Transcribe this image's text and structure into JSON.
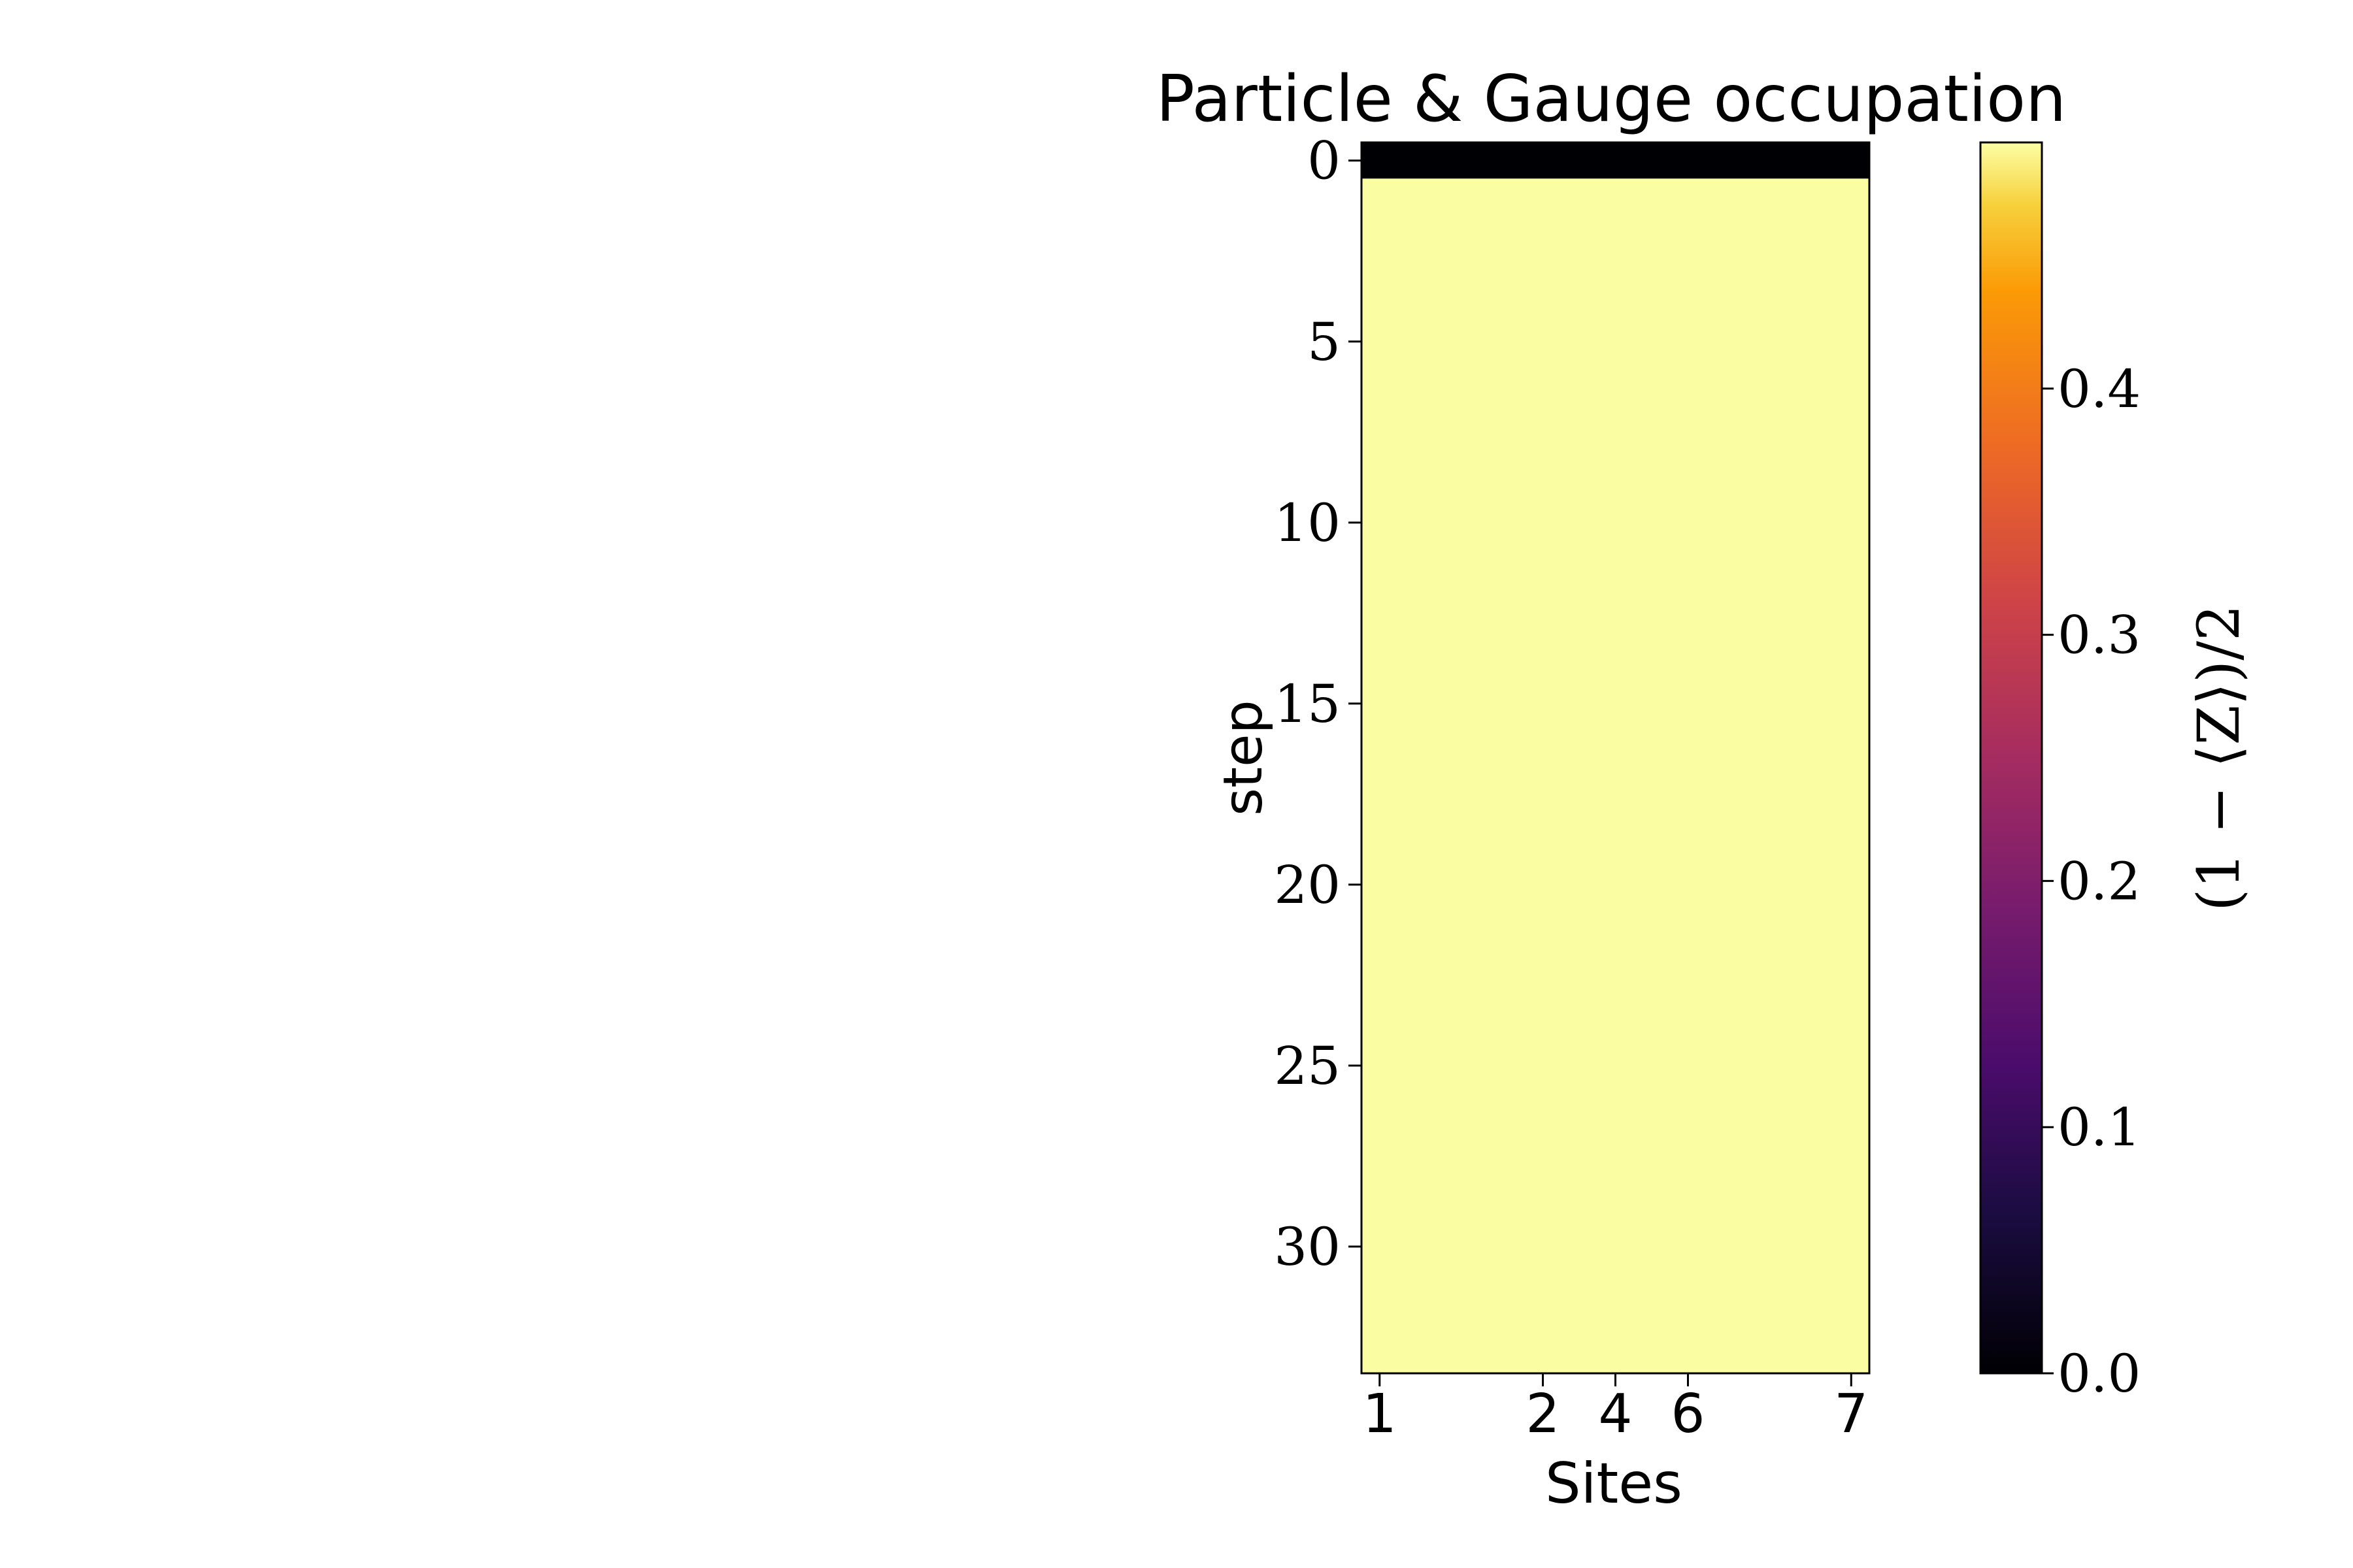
{
  "chart_data": {
    "type": "heatmap",
    "title": "Particle & Gauge occupation",
    "xlabel": "Sites",
    "ylabel": "step",
    "x_tick_labels": [
      "1",
      "2",
      "4",
      "6",
      "7"
    ],
    "y_ticks": [
      0,
      5,
      10,
      15,
      20,
      25,
      30
    ],
    "n_columns": 14,
    "ylim": [
      -0.5,
      33.5
    ],
    "cmap": "inferno",
    "colorbar": {
      "label": "(1 − ⟨Z⟩)/2",
      "ticks": [
        "0.0",
        "0.1",
        "0.2",
        "0.3",
        "0.4"
      ],
      "range": [
        0.0,
        0.5
      ]
    },
    "rows": [
      {
        "step": 0,
        "value": 0.0
      },
      {
        "steps": [
          1,
          33
        ],
        "value": 0.5
      }
    ],
    "colors": {
      "low": "#000004",
      "high": "#fbfda2"
    }
  }
}
